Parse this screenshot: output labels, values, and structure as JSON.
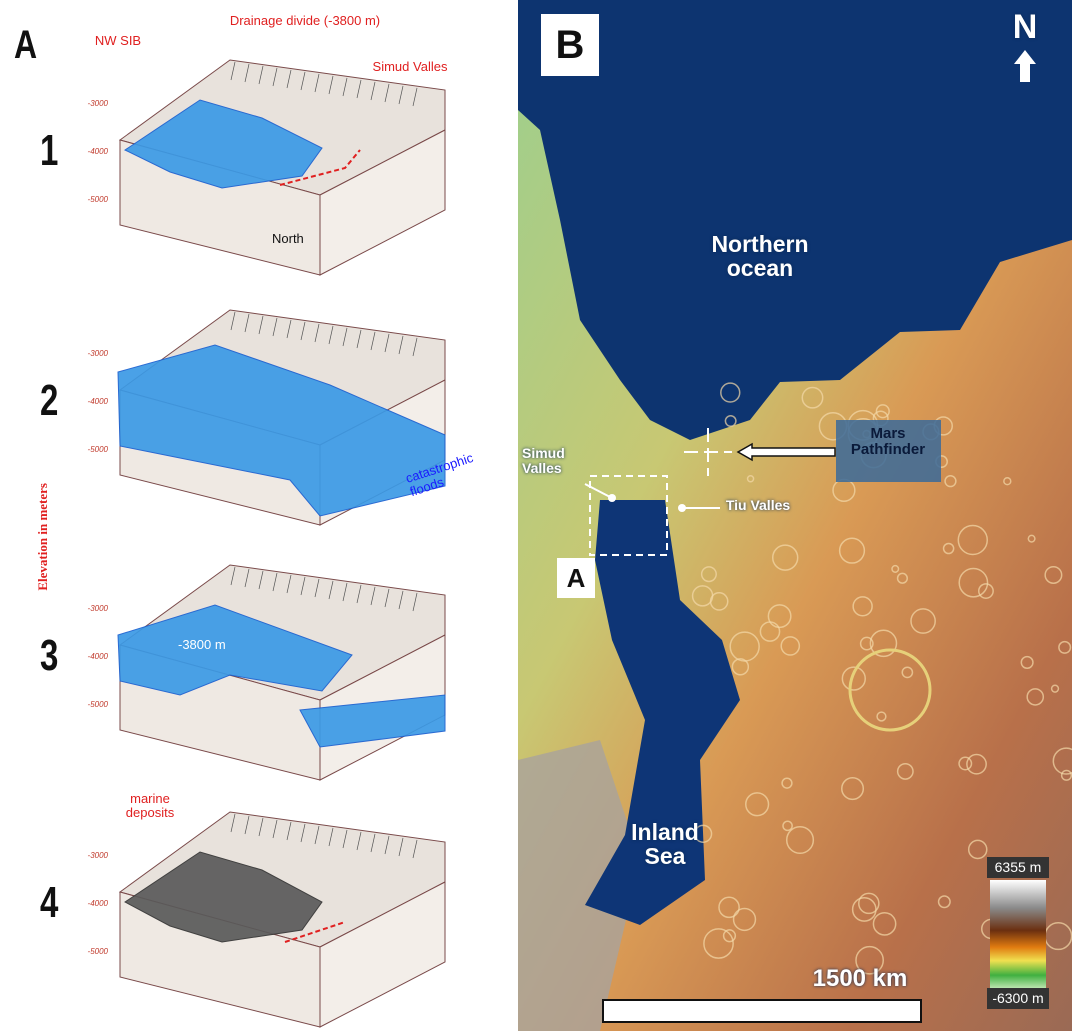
{
  "panel_a": {
    "label": "A",
    "axis_label": "Elevation in meters",
    "stages": [
      {
        "number": "1",
        "elevation_ticks": [
          "-3000",
          "-4000",
          "-5000"
        ],
        "annotations": [
          "NW SIB",
          "Drainage divide (-3800 m)",
          "Simud Valles",
          "North"
        ]
      },
      {
        "number": "2",
        "elevation_ticks": [
          "-3000",
          "-4000",
          "-5000"
        ],
        "annotations": [
          "catastrophic floods"
        ]
      },
      {
        "number": "3",
        "elevation_ticks": [
          "-3000",
          "-4000",
          "-5000"
        ],
        "annotations": [
          "-3800 m"
        ]
      },
      {
        "number": "4",
        "elevation_ticks": [
          "-3000",
          "-4000",
          "-5000"
        ],
        "annotations": [
          "marine deposits"
        ]
      }
    ]
  },
  "panel_b": {
    "label": "B",
    "north": "N",
    "ocean_label": "Northern ocean",
    "pathfinder_label": "Mars Pathfinder",
    "simud_label": "Simud Valles",
    "tiu_label": "Tiu Valles",
    "inset_label": "A",
    "sea_label": "Inland Sea",
    "scale_bar": "1500 km",
    "legend_max": "6355 m",
    "legend_min": "-6300 m"
  }
}
